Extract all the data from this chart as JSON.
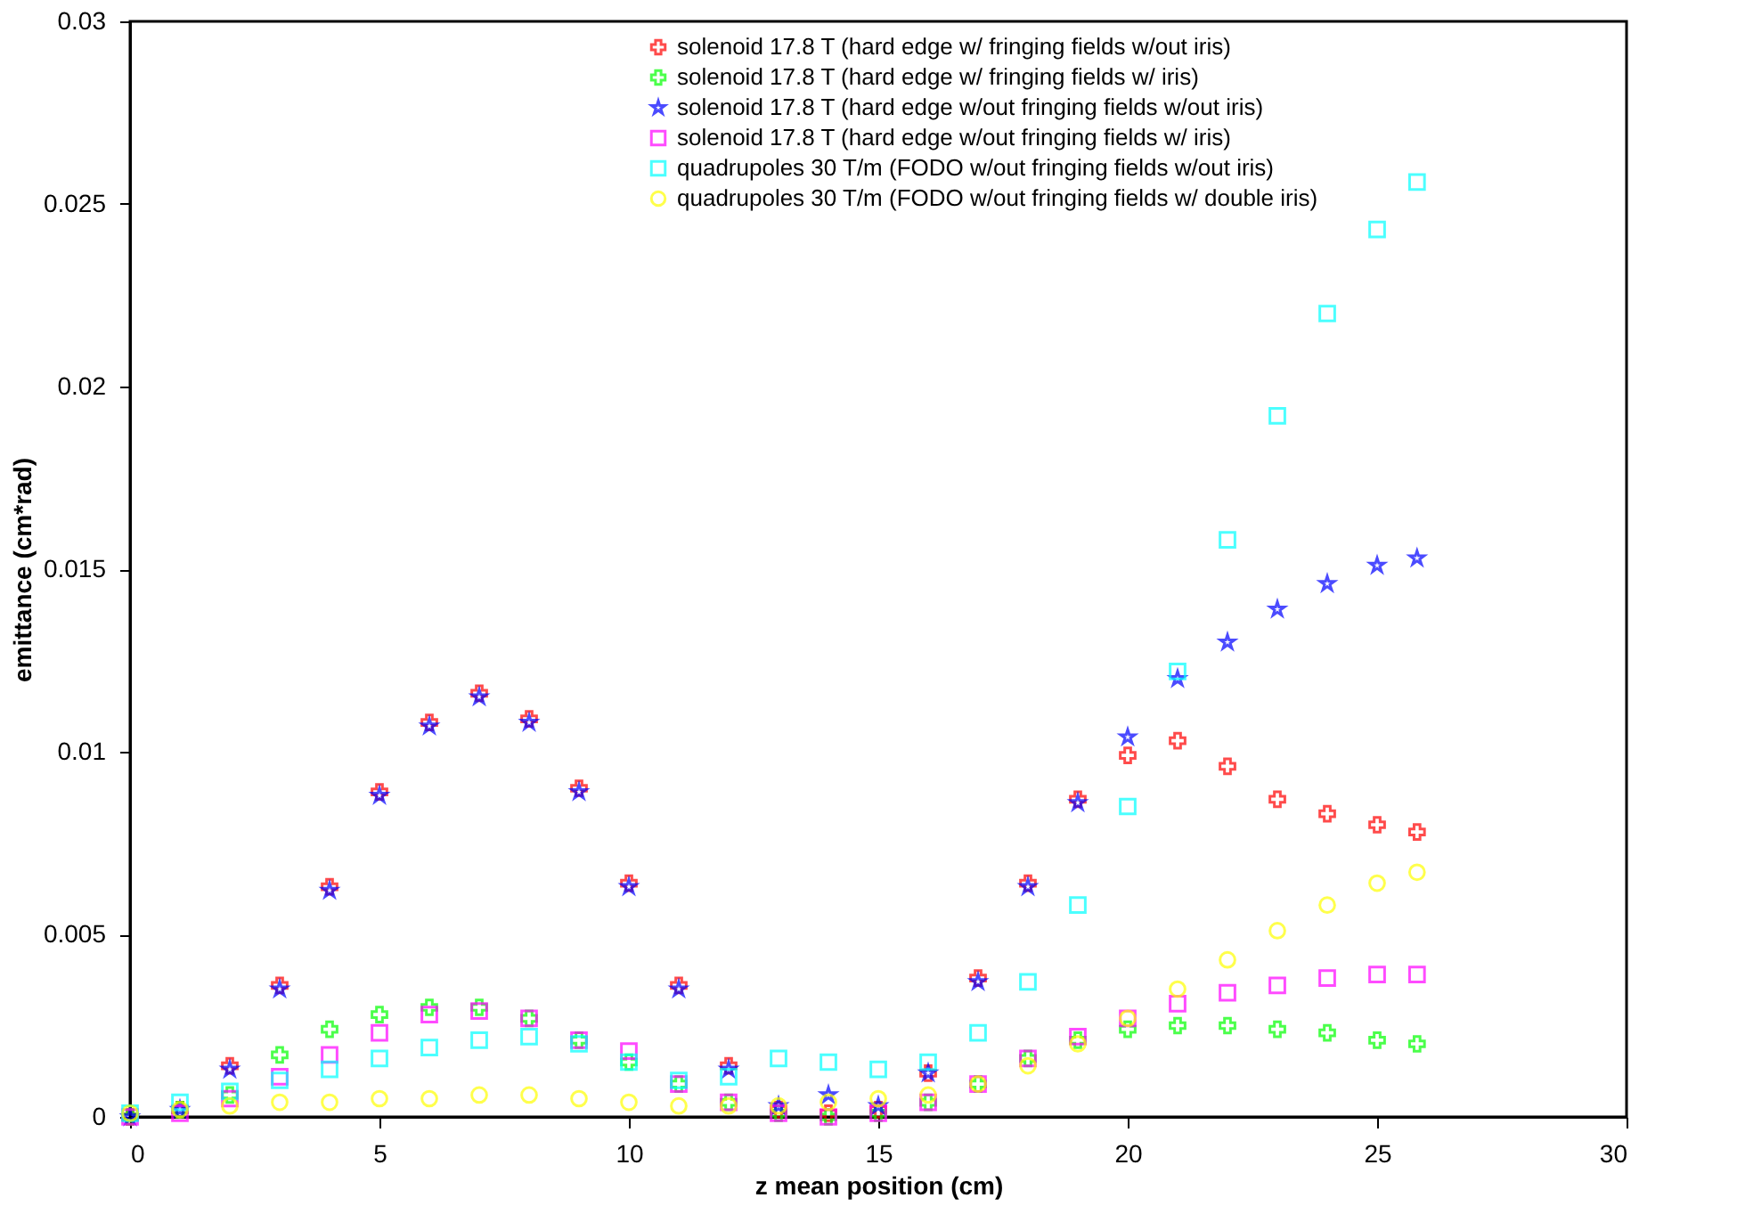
{
  "chart_data": {
    "type": "scatter",
    "xlabel": "z mean position (cm)",
    "ylabel": "emittance (cm*rad)",
    "x": [
      0,
      1,
      2,
      3,
      4,
      5,
      6,
      7,
      8,
      9,
      10,
      11,
      12,
      13,
      14,
      15,
      16,
      17,
      18,
      19,
      20,
      21,
      22,
      23,
      24,
      25,
      25.8
    ],
    "xlim": [
      0,
      30
    ],
    "xticks": [
      0,
      5,
      10,
      15,
      20,
      25,
      30
    ],
    "ylim": [
      0,
      0.03
    ],
    "yticks": [
      0,
      0.005,
      0.01,
      0.015,
      0.02,
      0.025,
      0.03
    ],
    "grid": false,
    "legend": "top right",
    "series": [
      {
        "name": "solenoid 17.8 T (hard edge w/ fringing fields w/out iris)",
        "color": "#ff0000",
        "marker": "cross",
        "values": [
          0,
          0.0002,
          0.0014,
          0.0036,
          0.0063,
          0.0089,
          0.0108,
          0.0116,
          0.0109,
          0.009,
          0.0064,
          0.0036,
          0.0014,
          0.0002,
          0.0001,
          0.0002,
          0.0012,
          0.0038,
          0.0064,
          0.0087,
          0.0099,
          0.0103,
          0.0096,
          0.0087,
          0.0083,
          0.008,
          0.0078
        ]
      },
      {
        "name": "solenoid 17.8 T (hard edge w/ fringing fields w/ iris)",
        "color": "#00ff00",
        "marker": "cross",
        "values": [
          0,
          0.0002,
          0.0006,
          0.0017,
          0.0024,
          0.0028,
          0.003,
          0.003,
          0.0027,
          0.0021,
          0.0015,
          0.0009,
          0.0004,
          0.0001,
          0,
          0.0001,
          0.0004,
          0.0009,
          0.0016,
          0.0021,
          0.0024,
          0.0025,
          0.0025,
          0.0024,
          0.0023,
          0.0021,
          0.002
        ]
      },
      {
        "name": "solenoid 17.8 T (hard edge w/out fringing fields w/out iris)",
        "color": "#0000ff",
        "marker": "star",
        "values": [
          0,
          0.0002,
          0.0013,
          0.0035,
          0.0062,
          0.0088,
          0.0107,
          0.0115,
          0.0108,
          0.0089,
          0.0063,
          0.0035,
          0.0013,
          0.0003,
          0.0006,
          0.0003,
          0.0012,
          0.0037,
          0.0063,
          0.0086,
          0.0104,
          0.012,
          0.013,
          0.0139,
          0.0146,
          0.0151,
          0.0153
        ]
      },
      {
        "name": "solenoid 17.8 T (hard edge w/out fringing fields w/ iris)",
        "color": "#ff00ff",
        "marker": "square",
        "values": [
          0,
          0.0001,
          0.0005,
          0.0011,
          0.0017,
          0.0023,
          0.0028,
          0.0029,
          0.0027,
          0.0021,
          0.0018,
          0.0009,
          0.0004,
          0.0001,
          0,
          0.0001,
          0.0004,
          0.0009,
          0.0016,
          0.0022,
          0.0027,
          0.0031,
          0.0034,
          0.0036,
          0.0038,
          0.0039,
          0.0039
        ]
      },
      {
        "name": "quadrupoles 30 T/m (FODO w/out fringing fields w/out iris)",
        "color": "#00ffff",
        "marker": "square",
        "values": [
          0.0001,
          0.0004,
          0.0007,
          0.001,
          0.0013,
          0.0016,
          0.0019,
          0.0021,
          0.0022,
          0.002,
          0.0015,
          0.001,
          0.0011,
          0.0016,
          0.0015,
          0.0013,
          0.0015,
          0.0023,
          0.0037,
          0.0058,
          0.0085,
          0.0122,
          0.0158,
          0.0192,
          0.022,
          0.0243,
          0.0256
        ]
      },
      {
        "name": "quadrupoles 30 T/m (FODO w/out fringing fields w/ double iris)",
        "color": "#ffff00",
        "marker": "circle",
        "values": [
          0.0001,
          0.0002,
          0.0003,
          0.0004,
          0.0004,
          0.0005,
          0.0005,
          0.0006,
          0.0006,
          0.0005,
          0.0004,
          0.0003,
          0.0003,
          0.0003,
          0.0004,
          0.0005,
          0.0006,
          0.0009,
          0.0014,
          0.002,
          0.0027,
          0.0035,
          0.0043,
          0.0051,
          0.0058,
          0.0064,
          0.0067
        ]
      }
    ]
  }
}
